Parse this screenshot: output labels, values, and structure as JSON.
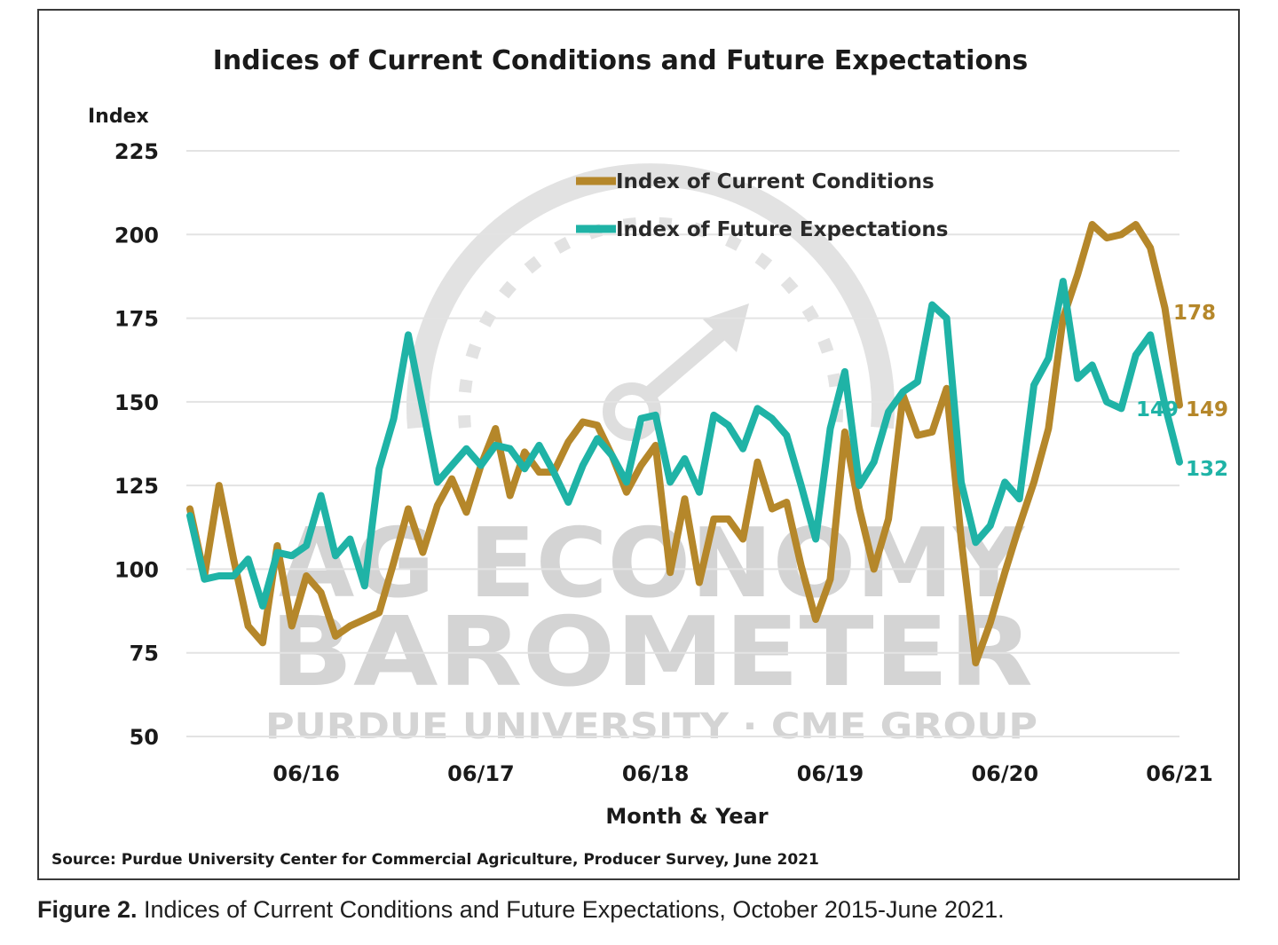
{
  "figure": {
    "caption_label": "Figure 2.",
    "caption_text": " Indices of Current Conditions and Future Expectations, October 2015-June 2021.",
    "source": "Source: Purdue University Center for Commercial Agriculture, Producer Survey, June 2021"
  },
  "watermark": {
    "line1": "AG ECONOMY",
    "line2": "BAROMETER",
    "line3": "PURDUE UNIVERSITY  ·  CME GROUP"
  },
  "colors": {
    "current": "#b5872a",
    "future": "#1fb3a6",
    "grid": "#e3e3e3"
  },
  "chart_data": {
    "type": "line",
    "title": "Indices of Current Conditions and Future Expectations",
    "ylabel": "Index",
    "xlabel": "Month & Year",
    "ylim": [
      50,
      225
    ],
    "yticks": [
      225,
      200,
      175,
      150,
      125,
      100,
      75,
      50
    ],
    "x_tick_labels": [
      "06/16",
      "06/17",
      "06/18",
      "06/19",
      "06/20",
      "06/21"
    ],
    "x_tick_index": [
      8,
      20,
      32,
      44,
      56,
      68
    ],
    "legend_position": "top-center",
    "grid": true,
    "series": [
      {
        "name": "Index of Current Conditions",
        "end_labels": [
          "178",
          "149"
        ],
        "values": [
          118,
          98,
          125,
          103,
          83,
          78,
          107,
          83,
          98,
          93,
          80,
          83,
          85,
          87,
          102,
          118,
          105,
          119,
          127,
          117,
          131,
          142,
          122,
          135,
          129,
          129,
          138,
          144,
          143,
          134,
          123,
          131,
          137,
          99,
          121,
          96,
          115,
          115,
          109,
          132,
          118,
          120,
          101,
          85,
          97,
          141,
          118,
          100,
          115,
          152,
          140,
          141,
          154,
          109,
          72,
          84,
          99,
          113,
          126,
          142,
          175,
          188,
          203,
          199,
          200,
          203,
          196,
          178,
          149
        ]
      },
      {
        "name": "Index of Future Expectations",
        "end_labels": [
          "149",
          "132"
        ],
        "values": [
          116,
          97,
          98,
          98,
          103,
          89,
          105,
          104,
          107,
          122,
          104,
          109,
          95,
          130,
          145,
          170,
          148,
          126,
          131,
          136,
          131,
          137,
          136,
          130,
          137,
          129,
          120,
          131,
          139,
          134,
          126,
          145,
          146,
          126,
          133,
          123,
          146,
          143,
          136,
          148,
          145,
          140,
          125,
          109,
          142,
          159,
          125,
          132,
          147,
          153,
          156,
          179,
          175,
          126,
          108,
          113,
          126,
          121,
          155,
          163,
          186,
          157,
          161,
          150,
          148,
          164,
          170,
          149,
          132
        ]
      }
    ]
  }
}
